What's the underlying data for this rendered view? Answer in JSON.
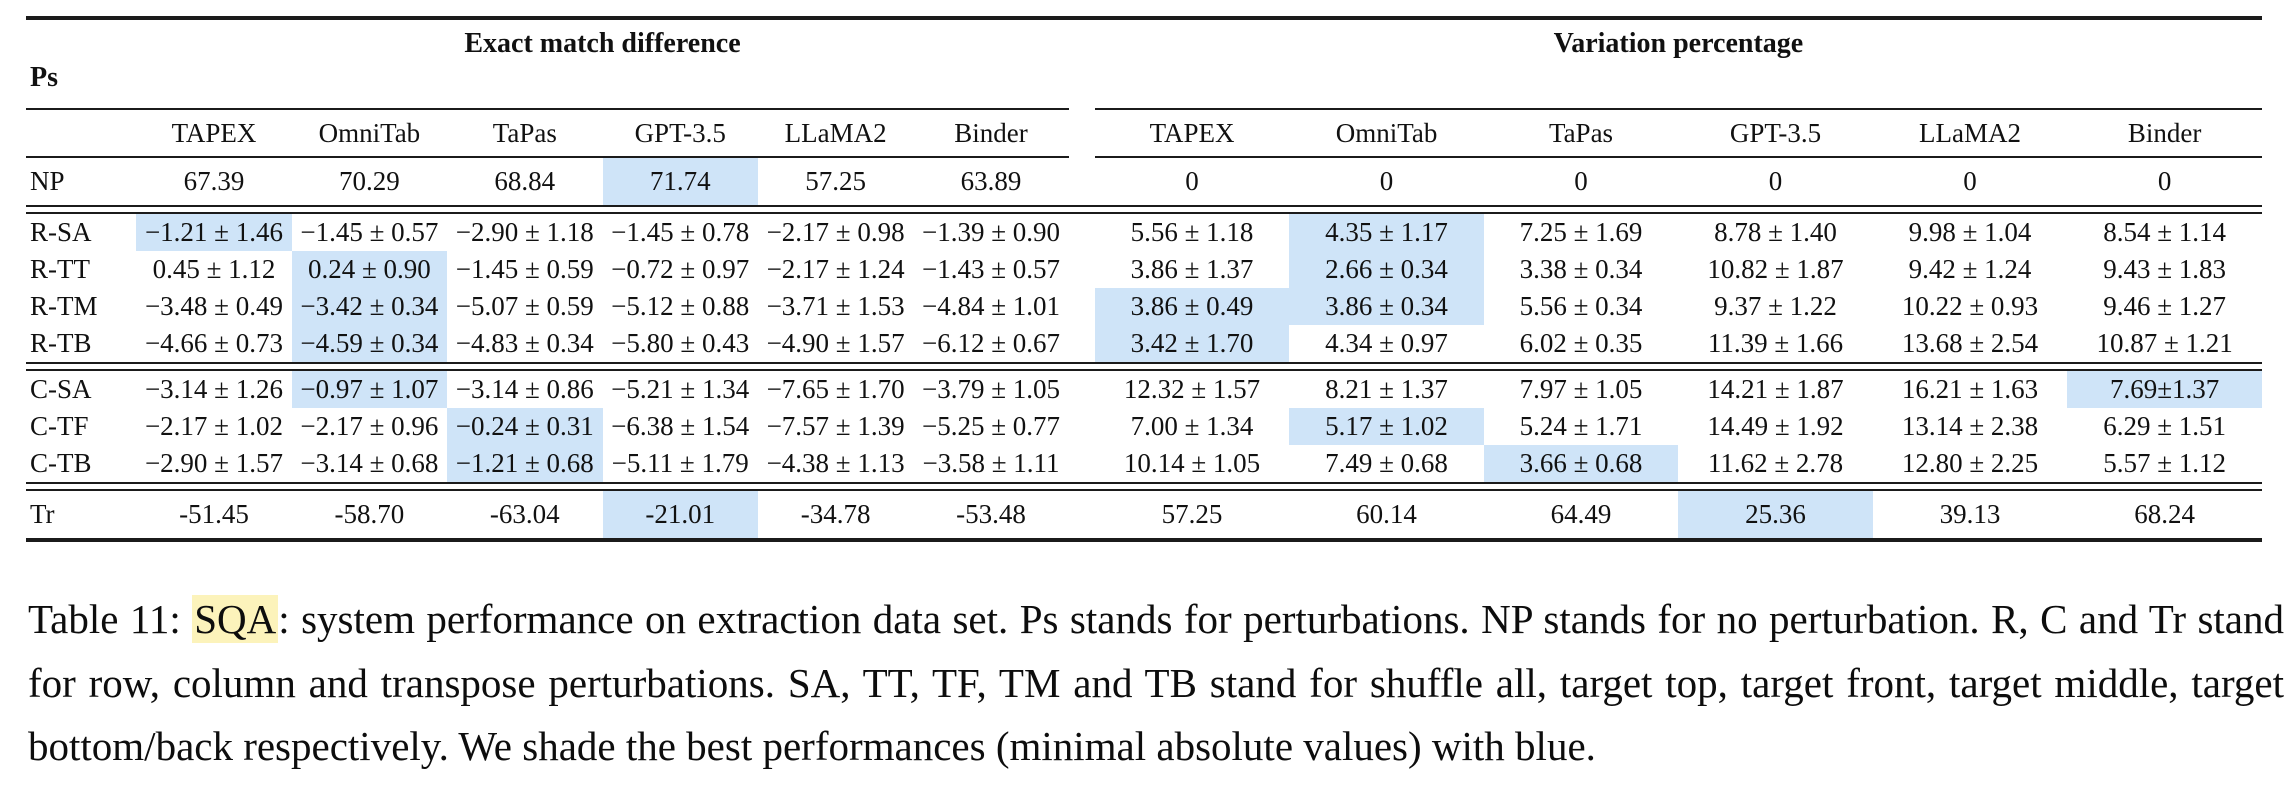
{
  "colors": {
    "cell_highlight_blue": "#cfe4f8",
    "caption_highlight_yellow": "#fcf3bb"
  },
  "table": {
    "ps_label": "Ps",
    "group_headers": [
      "Exact match difference",
      "Variation percentage"
    ],
    "systems": [
      "TAPEX",
      "OmniTab",
      "TaPas",
      "GPT-3.5",
      "LLaMA2",
      "Binder"
    ],
    "sections": [
      {
        "rows": [
          {
            "label": "NP",
            "emd": [
              "67.39",
              "70.29",
              "68.84",
              "71.74",
              "57.25",
              "63.89"
            ],
            "vp": [
              "0",
              "0",
              "0",
              "0",
              "0",
              "0"
            ],
            "emd_shaded": [
              3
            ],
            "vp_shaded": []
          }
        ]
      },
      {
        "rows": [
          {
            "label": "R-SA",
            "emd": [
              "−1.21 ± 1.46",
              "−1.45 ± 0.57",
              "−2.90 ± 1.18",
              "−1.45 ± 0.78",
              "−2.17 ± 0.98",
              "−1.39 ± 0.90"
            ],
            "vp": [
              "5.56 ± 1.18",
              "4.35 ± 1.17",
              "7.25 ± 1.69",
              "8.78 ± 1.40",
              "9.98 ± 1.04",
              "8.54 ± 1.14"
            ],
            "emd_shaded": [
              0
            ],
            "vp_shaded": [
              1
            ]
          },
          {
            "label": "R-TT",
            "emd": [
              "0.45 ± 1.12",
              "0.24 ± 0.90",
              "−1.45 ± 0.59",
              "−0.72 ± 0.97",
              "−2.17 ± 1.24",
              "−1.43 ± 0.57"
            ],
            "vp": [
              "3.86 ± 1.37",
              "2.66 ± 0.34",
              "3.38 ± 0.34",
              "10.82 ± 1.87",
              "9.42 ± 1.24",
              "9.43 ± 1.83"
            ],
            "emd_shaded": [
              1
            ],
            "vp_shaded": [
              1
            ]
          },
          {
            "label": "R-TM",
            "emd": [
              "−3.48 ± 0.49",
              "−3.42 ± 0.34",
              "−5.07 ± 0.59",
              "−5.12 ± 0.88",
              "−3.71 ± 1.53",
              "−4.84 ± 1.01"
            ],
            "vp": [
              "3.86 ± 0.49",
              "3.86 ± 0.34",
              "5.56 ± 0.34",
              "9.37 ± 1.22",
              "10.22 ± 0.93",
              "9.46 ± 1.27"
            ],
            "emd_shaded": [
              1
            ],
            "vp_shaded": [
              0,
              1
            ]
          },
          {
            "label": "R-TB",
            "emd": [
              "−4.66 ± 0.73",
              "−4.59 ± 0.34",
              "−4.83 ± 0.34",
              "−5.80 ± 0.43",
              "−4.90 ± 1.57",
              "−6.12 ± 0.67"
            ],
            "vp": [
              "3.42 ± 1.70",
              "4.34 ± 0.97",
              "6.02 ± 0.35",
              "11.39 ± 1.66",
              "13.68 ± 2.54",
              "10.87 ± 1.21"
            ],
            "emd_shaded": [
              1
            ],
            "vp_shaded": [
              0
            ]
          }
        ]
      },
      {
        "rows": [
          {
            "label": "C-SA",
            "emd": [
              "−3.14 ± 1.26",
              "−0.97 ± 1.07",
              "−3.14 ± 0.86",
              "−5.21 ± 1.34",
              "−7.65 ± 1.70",
              "−3.79 ± 1.05"
            ],
            "vp": [
              "12.32 ± 1.57",
              "8.21 ± 1.37",
              "7.97 ± 1.05",
              "14.21 ± 1.87",
              "16.21 ± 1.63",
              "7.69±1.37"
            ],
            "emd_shaded": [
              1
            ],
            "vp_shaded": [
              5
            ]
          },
          {
            "label": "C-TF",
            "emd": [
              "−2.17 ± 1.02",
              "−2.17 ± 0.96",
              "−0.24 ± 0.31",
              "−6.38 ± 1.54",
              "−7.57 ± 1.39",
              "−5.25 ± 0.77"
            ],
            "vp": [
              "7.00 ± 1.34",
              "5.17 ± 1.02",
              "5.24 ± 1.71",
              "14.49 ± 1.92",
              "13.14 ± 2.38",
              "6.29 ± 1.51"
            ],
            "emd_shaded": [
              2
            ],
            "vp_shaded": [
              1
            ]
          },
          {
            "label": "C-TB",
            "emd": [
              "−2.90 ± 1.57",
              "−3.14 ± 0.68",
              "−1.21 ± 0.68",
              "−5.11 ± 1.79",
              "−4.38 ± 1.13",
              "−3.58 ± 1.11"
            ],
            "vp": [
              "10.14 ± 1.05",
              "7.49 ± 0.68",
              "3.66 ± 0.68",
              "11.62 ± 2.78",
              "12.80 ± 2.25",
              "5.57 ± 1.12"
            ],
            "emd_shaded": [
              2
            ],
            "vp_shaded": [
              2
            ]
          }
        ]
      },
      {
        "rows": [
          {
            "label": "Tr",
            "emd": [
              "-51.45",
              "-58.70",
              "-63.04",
              "-21.01",
              "-34.78",
              "-53.48"
            ],
            "vp": [
              "57.25",
              "60.14",
              "64.49",
              "25.36",
              "39.13",
              "68.24"
            ],
            "emd_shaded": [
              3
            ],
            "vp_shaded": [
              3
            ]
          }
        ]
      }
    ]
  },
  "caption": {
    "prefix": "Table 11: ",
    "highlighted": "SQA",
    "rest": ": system performance on extraction data set. Ps stands for perturbations. NP stands for no perturbation. R, C and Tr stand for row, column and transpose perturbations. SA, TT, TF, TM and TB stand for shuffle all, target top, target front, target middle, target bottom/back respectively. We shade the best performances (minimal absolute values) with blue."
  }
}
